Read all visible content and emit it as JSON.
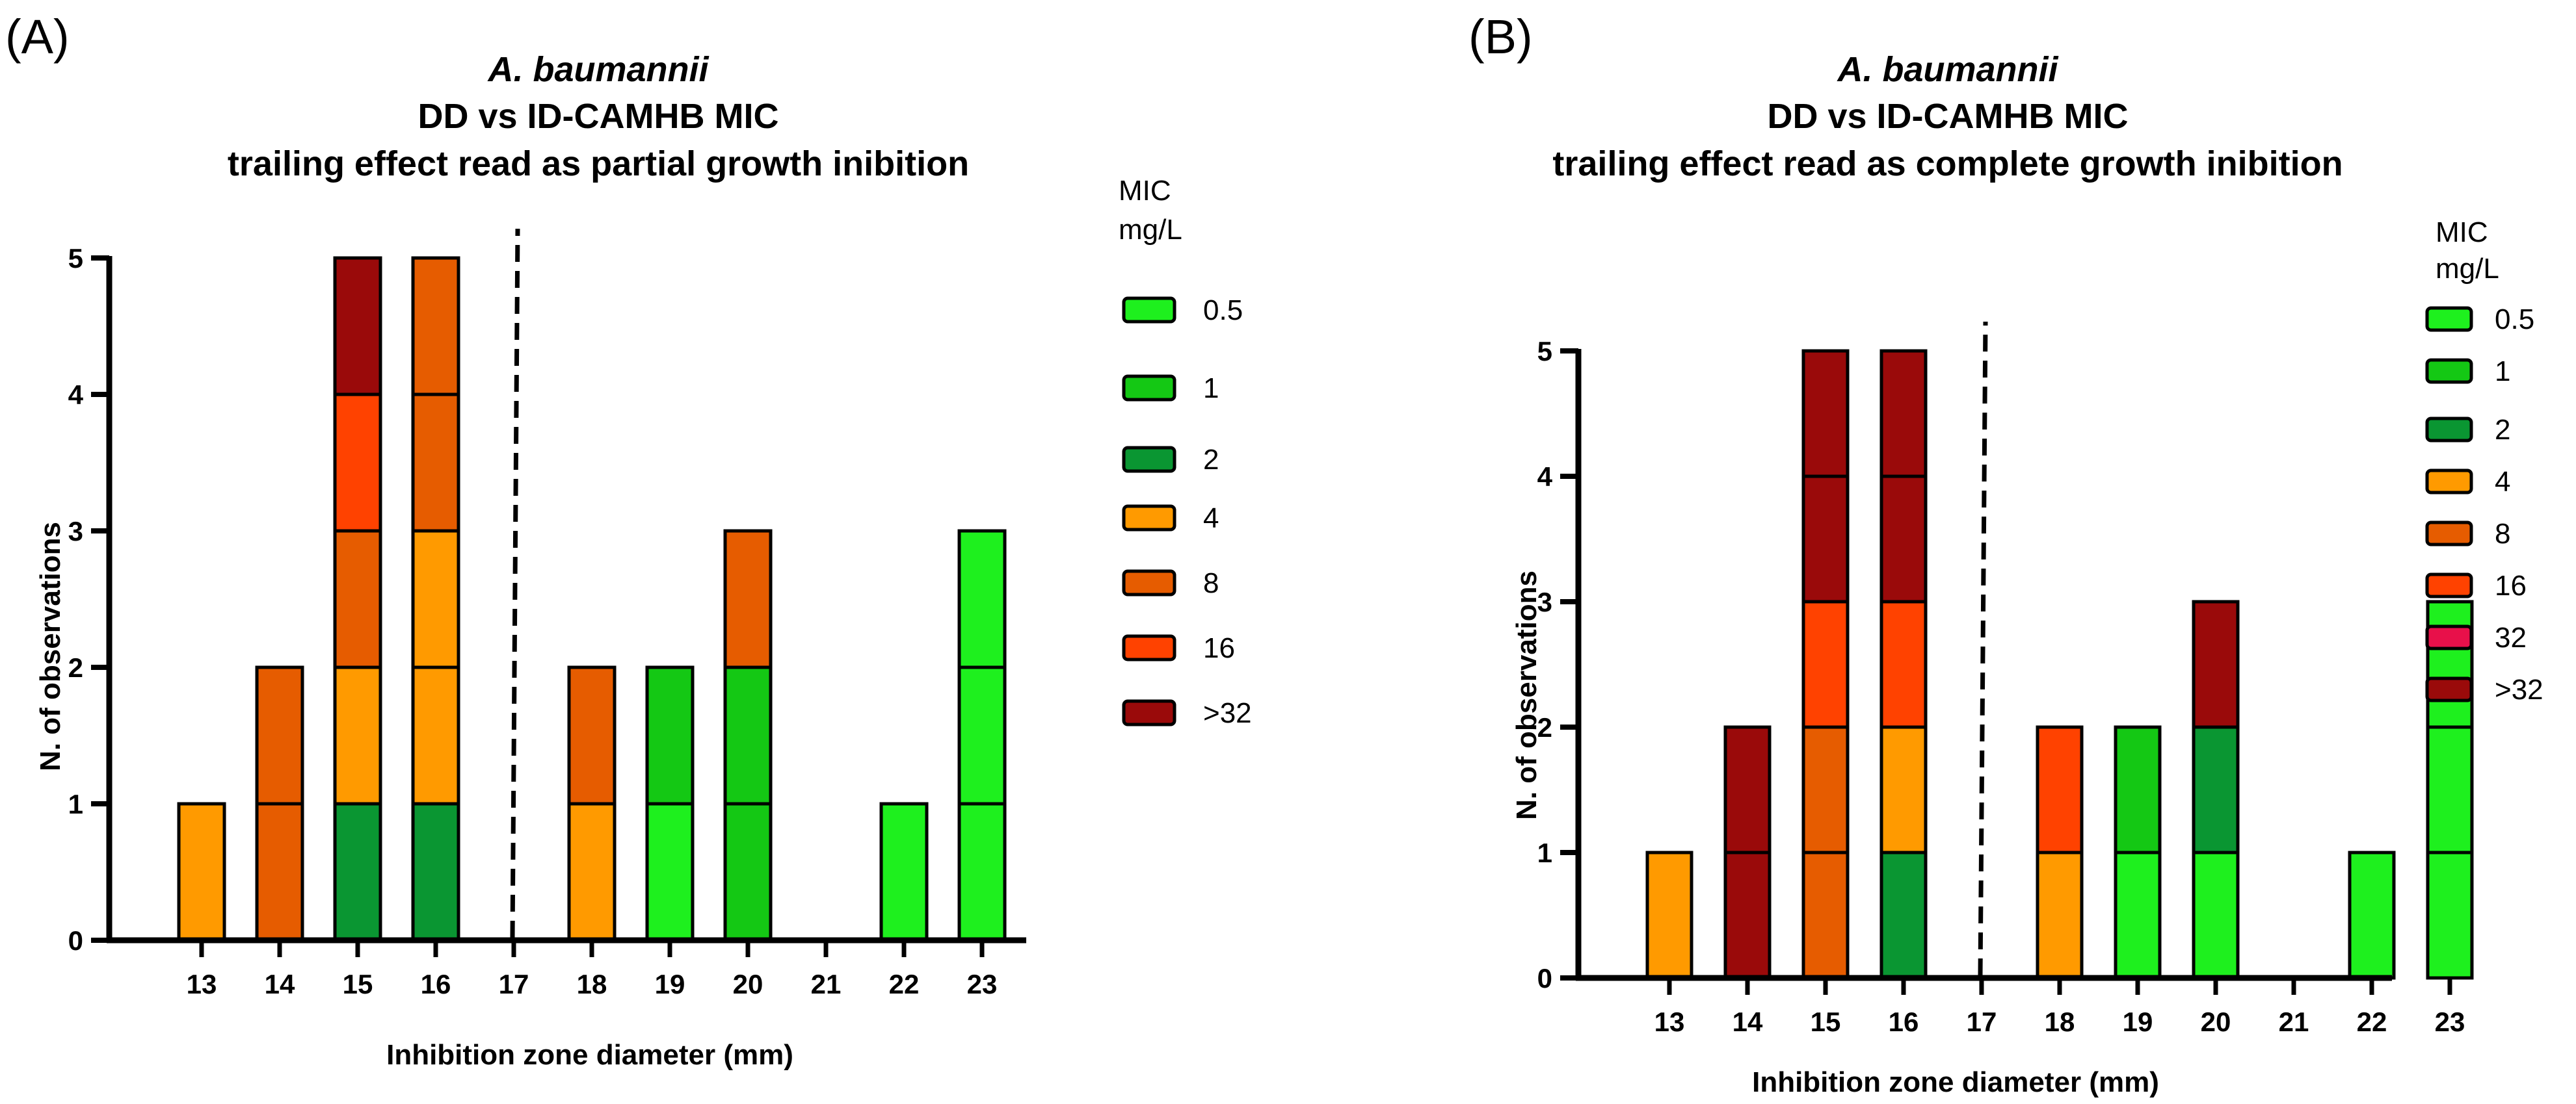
{
  "chart_data": [
    {
      "type": "bar",
      "stacked": true,
      "panel_label": "(A)",
      "title_lines": [
        "A. baumannii",
        "DD vs ID-CAMHB MIC",
        "trailing effect read as partial growth inibition"
      ],
      "xlabel": "Inhibition zone diameter (mm)",
      "ylabel": "N. of observations",
      "ylim": [
        0,
        5
      ],
      "yticks": [
        "0",
        "1",
        "2",
        "3",
        "4",
        "5"
      ],
      "breakpoint_x": "17",
      "legend_title": [
        "MIC",
        "mg/L"
      ],
      "legend_placement": "right",
      "categories": [
        "13",
        "14",
        "15",
        "16",
        "17",
        "18",
        "19",
        "20",
        "21",
        "22",
        "23"
      ],
      "series": [
        {
          "name": "0.5",
          "color": "#1ef01e",
          "values": [
            0,
            0,
            0,
            0,
            0,
            0,
            1,
            0,
            0,
            1,
            3
          ]
        },
        {
          "name": "1",
          "color": "#14c814",
          "values": [
            0,
            0,
            0,
            0,
            0,
            0,
            1,
            2,
            0,
            0,
            0
          ]
        },
        {
          "name": "2",
          "color": "#0a9632",
          "values": [
            0,
            0,
            1,
            1,
            0,
            0,
            0,
            0,
            0,
            0,
            0
          ]
        },
        {
          "name": "4",
          "color": "#ff9a00",
          "values": [
            1,
            0,
            1,
            2,
            0,
            1,
            0,
            0,
            0,
            0,
            0
          ]
        },
        {
          "name": "8",
          "color": "#e65c00",
          "values": [
            0,
            2,
            1,
            2,
            0,
            1,
            0,
            1,
            0,
            0,
            0
          ]
        },
        {
          "name": "16",
          "color": "#ff4200",
          "values": [
            0,
            0,
            1,
            0,
            0,
            0,
            0,
            0,
            0,
            0,
            0
          ]
        },
        {
          "name": ">32",
          "color": "#9a0a0a",
          "values": [
            0,
            0,
            1,
            0,
            0,
            0,
            0,
            0,
            0,
            0,
            0
          ]
        }
      ]
    },
    {
      "type": "bar",
      "stacked": true,
      "panel_label": "(B)",
      "title_lines": [
        "A. baumannii",
        "DD vs ID-CAMHB MIC",
        "trailing effect read as complete growth inibition"
      ],
      "xlabel": "Inhibition zone diameter (mm)",
      "ylabel": "N. of observations",
      "ylim": [
        0,
        5
      ],
      "yticks": [
        "0",
        "1",
        "2",
        "3",
        "4",
        "5"
      ],
      "breakpoint_x": "17",
      "legend_title": [
        "MIC",
        "mg/L"
      ],
      "legend_placement": "right",
      "categories": [
        "13",
        "14",
        "15",
        "16",
        "17",
        "18",
        "19",
        "20",
        "21",
        "22",
        "23"
      ],
      "series": [
        {
          "name": "0.5",
          "color": "#1ef01e",
          "values": [
            0,
            0,
            0,
            0,
            0,
            0,
            1,
            1,
            0,
            1,
            3
          ]
        },
        {
          "name": "1",
          "color": "#14c814",
          "values": [
            0,
            0,
            0,
            0,
            0,
            0,
            1,
            0,
            0,
            0,
            0
          ]
        },
        {
          "name": "2",
          "color": "#0a9632",
          "values": [
            0,
            0,
            0,
            1,
            0,
            0,
            0,
            1,
            0,
            0,
            0
          ]
        },
        {
          "name": "4",
          "color": "#ff9a00",
          "values": [
            1,
            0,
            0,
            1,
            0,
            1,
            0,
            0,
            0,
            0,
            0
          ]
        },
        {
          "name": "8",
          "color": "#e65c00",
          "values": [
            0,
            0,
            2,
            0,
            0,
            0,
            0,
            0,
            0,
            0,
            0
          ]
        },
        {
          "name": "16",
          "color": "#ff4200",
          "values": [
            0,
            0,
            1,
            1,
            0,
            1,
            0,
            0,
            0,
            0,
            0
          ]
        },
        {
          "name": "32",
          "color": "#e8104a",
          "values": [
            0,
            0,
            0,
            0,
            0,
            0,
            0,
            0,
            0,
            0,
            0
          ]
        },
        {
          "name": ">32",
          "color": "#9a0a0a",
          "values": [
            0,
            2,
            2,
            2,
            0,
            0,
            0,
            1,
            0,
            0,
            0
          ]
        }
      ]
    }
  ]
}
